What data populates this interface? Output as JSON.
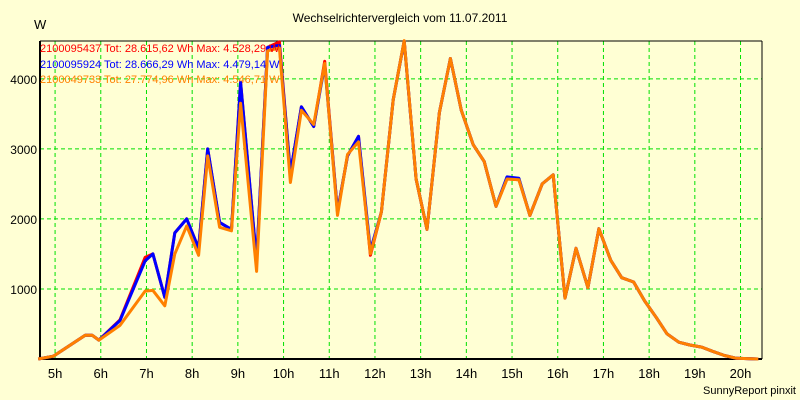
{
  "chart_data": {
    "type": "line",
    "title": "Wechselrichtervergleich vom 11.07.2011",
    "ylabel": "W",
    "xlabel": "",
    "footer": "SunnyReport pinxit",
    "xlim": [
      4.67,
      20.47
    ],
    "ylim": [
      0,
      4540
    ],
    "grid": true,
    "legend_position": "top-left",
    "x_ticks": [
      5,
      6,
      7,
      8,
      9,
      10,
      11,
      12,
      13,
      14,
      15,
      16,
      17,
      18,
      19,
      20
    ],
    "x_tick_labels": [
      "5h",
      "6h",
      "7h",
      "8h",
      "9h",
      "10h",
      "11h",
      "12h",
      "13h",
      "14h",
      "15h",
      "16h",
      "17h",
      "18h",
      "19h",
      "20h"
    ],
    "y_ticks": [
      1000,
      2000,
      3000,
      4000
    ],
    "y_tick_labels": [
      "1000",
      "2000",
      "3000",
      "4000"
    ],
    "x": [
      4.63,
      4.96,
      5.66,
      5.81,
      5.96,
      6.42,
      6.97,
      7.14,
      7.4,
      7.62,
      7.88,
      8.14,
      8.34,
      8.6,
      8.86,
      9.06,
      9.41,
      9.65,
      9.91,
      10.15,
      10.39,
      10.66,
      10.9,
      11.18,
      11.4,
      11.64,
      11.9,
      12.14,
      12.4,
      12.64,
      12.9,
      13.14,
      13.41,
      13.65,
      13.89,
      14.15,
      14.39,
      14.65,
      14.89,
      15.15,
      15.39,
      15.66,
      15.9,
      16.16,
      16.4,
      16.66,
      16.9,
      17.16,
      17.4,
      17.66,
      17.9,
      18.16,
      18.39,
      18.65,
      18.89,
      19.15,
      19.39,
      19.65,
      19.91,
      20.39
    ],
    "series": [
      {
        "name": "2100095437",
        "legend": "2100095437  Tot: 28.615,62 Wh  Max: 4.528,29 W",
        "color": "#FF0000",
        "values": [
          0,
          40,
          340,
          340,
          270,
          560,
          1450,
          1500,
          880,
          1800,
          2000,
          1580,
          3000,
          1950,
          1850,
          3950,
          1400,
          4450,
          4528,
          2650,
          3600,
          3320,
          4250,
          2100,
          2900,
          3180,
          1480,
          2100,
          3700,
          4540,
          2570,
          1850,
          3520,
          4290,
          3550,
          3060,
          2820,
          2180,
          2570,
          2560,
          2050,
          2500,
          2630,
          870,
          1580,
          1020,
          1860,
          1410,
          1160,
          1100,
          830,
          590,
          360,
          240,
          200,
          170,
          110,
          50,
          10,
          0
        ]
      },
      {
        "name": "2100095924",
        "legend": "2100095924  Tot: 28.666,29 Wh  Max: 4.479,14 W",
        "color": "#0000FF",
        "values": [
          0,
          40,
          340,
          340,
          270,
          550,
          1400,
          1500,
          880,
          1800,
          2000,
          1580,
          3000,
          1950,
          1850,
          3950,
          1400,
          4450,
          4479,
          2650,
          3600,
          3320,
          4200,
          2100,
          2900,
          3180,
          1550,
          2100,
          3700,
          4540,
          2570,
          1850,
          3520,
          4290,
          3550,
          3060,
          2820,
          2180,
          2600,
          2580,
          2050,
          2500,
          2630,
          870,
          1580,
          1020,
          1860,
          1410,
          1160,
          1100,
          830,
          590,
          360,
          240,
          200,
          170,
          110,
          50,
          10,
          0
        ]
      },
      {
        "name": "2100049733",
        "legend": "2100049733  Tot: 27.774,96 Wh  Max: 4.546,71 W",
        "color": "#FF8000",
        "values": [
          0,
          40,
          340,
          340,
          270,
          480,
          970,
          980,
          760,
          1500,
          1900,
          1480,
          2900,
          1880,
          1830,
          3650,
          1250,
          4400,
          4440,
          2520,
          3550,
          3350,
          4220,
          2050,
          2920,
          3100,
          1500,
          2100,
          3700,
          4546,
          2570,
          1850,
          3520,
          4290,
          3550,
          3060,
          2820,
          2180,
          2570,
          2560,
          2050,
          2500,
          2630,
          870,
          1580,
          1020,
          1860,
          1410,
          1160,
          1100,
          830,
          590,
          360,
          240,
          200,
          170,
          110,
          50,
          10,
          0
        ]
      }
    ]
  },
  "colors": {
    "background": "#FFFFD4",
    "grid": "#00E000",
    "axis": "#000000"
  }
}
